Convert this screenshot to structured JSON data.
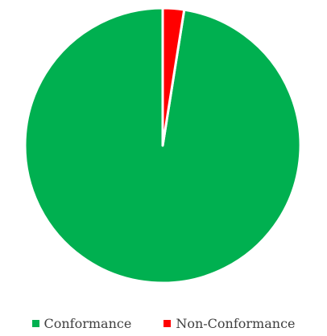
{
  "chart_data": {
    "type": "pie",
    "categories": [
      "Conformance",
      "Non-Conformance"
    ],
    "values": [
      97.5,
      2.5
    ],
    "colors": [
      "#00b050",
      "#ff0000"
    ],
    "slice_border_color": "#ffffff",
    "legend_position": "bottom"
  }
}
